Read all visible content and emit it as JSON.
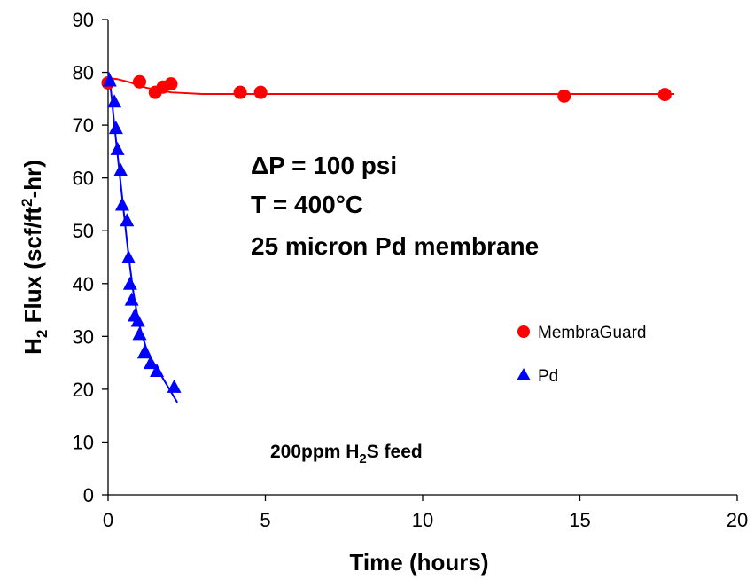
{
  "chart_data": {
    "type": "scatter",
    "xlabel": "Time (hours)",
    "ylabel": {
      "pre": "H",
      "sub": "2",
      "mid": " Flux (scf/ft",
      "sup": "2",
      "post": "-hr)"
    },
    "xlim": [
      0,
      20
    ],
    "ylim": [
      0,
      90
    ],
    "xticks": [
      0,
      5,
      10,
      15,
      20
    ],
    "yticks": [
      0,
      10,
      20,
      30,
      40,
      50,
      60,
      70,
      80,
      90
    ],
    "grid": false,
    "legend_position": "right-middle",
    "series": [
      {
        "name": "MembraGuard",
        "marker": "circle",
        "color": "#FF0000",
        "x": [
          0,
          1.0,
          1.5,
          1.75,
          2.0,
          4.2,
          4.85,
          14.5,
          17.7
        ],
        "y": [
          78,
          78.2,
          76.2,
          77.2,
          77.8,
          76.2,
          76.2,
          75.5,
          75.8
        ],
        "fit": {
          "x": [
            0,
            0.3,
            0.7,
            1.2,
            2.0,
            3.0,
            5.0,
            8.0,
            12.0,
            15.0,
            18.0
          ],
          "y": [
            78.9,
            78.7,
            78.1,
            77.1,
            76.2,
            75.9,
            75.9,
            75.9,
            75.9,
            75.9,
            75.9
          ]
        }
      },
      {
        "name": "Pd",
        "marker": "triangle",
        "color": "#0000FF",
        "x": [
          0.05,
          0.2,
          0.25,
          0.3,
          0.4,
          0.45,
          0.6,
          0.65,
          0.7,
          0.75,
          0.85,
          0.95,
          1.0,
          1.15,
          1.35,
          1.55,
          2.1
        ],
        "y": [
          78.5,
          74.5,
          69.5,
          65.5,
          61.5,
          55,
          52,
          45,
          40,
          37,
          34,
          33,
          30.5,
          27,
          25,
          23.5,
          20.5
        ],
        "fit": {
          "x": [
            0.02,
            0.1,
            0.2,
            0.3,
            0.4,
            0.5,
            0.6,
            0.7,
            0.8,
            0.9,
            1.0,
            1.2,
            1.4,
            1.6,
            1.8,
            2.0,
            2.2
          ],
          "y": [
            80,
            76,
            70,
            64.5,
            59,
            53.5,
            48,
            43,
            38.5,
            35,
            32,
            28,
            25.5,
            23.5,
            21.5,
            19.5,
            17.5
          ]
        }
      }
    ],
    "annotations": {
      "line1": "ΔP = 100 psi",
      "line2": "T = 400°C",
      "line3": "25 micron Pd membrane",
      "feed": {
        "pre": "200ppm H",
        "sub": "2",
        "post": "S feed"
      }
    }
  }
}
